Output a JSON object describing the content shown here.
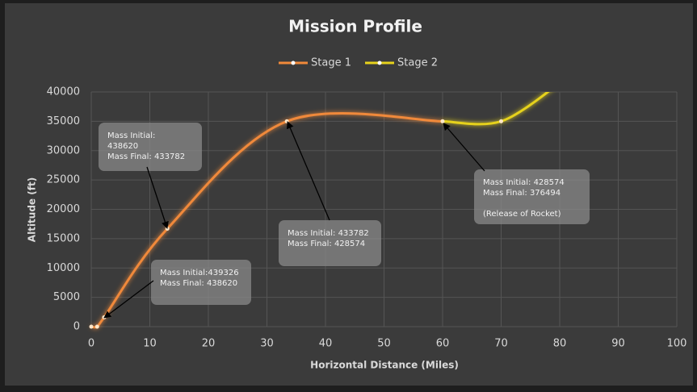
{
  "chart_data": {
    "type": "line",
    "title": "Mission Profile",
    "x_label": "Horizontal Distance (Miles)",
    "y_label": "Altitude (ft)",
    "xlim": [
      0,
      100
    ],
    "ylim": [
      0,
      40000
    ],
    "xticks": [
      0,
      10,
      20,
      30,
      40,
      50,
      60,
      70,
      80,
      90,
      100
    ],
    "yticks": [
      0,
      5000,
      10000,
      15000,
      20000,
      25000,
      30000,
      35000,
      40000
    ],
    "grid": true,
    "smooth": true,
    "legend": "top",
    "series": [
      {
        "name": "Stage 1",
        "color": "#f0893a",
        "x": [
          0,
          1,
          2.2,
          13,
          33.4,
          60
        ],
        "values": [
          0,
          0,
          1600,
          16700,
          35000,
          35000
        ]
      },
      {
        "name": "Stage 2",
        "color": "#e6d21c",
        "x": [
          60,
          70,
          80
        ],
        "values": [
          35000,
          35000,
          41500
        ]
      }
    ],
    "annotations": [
      {
        "lines": [
          "Mass Initial:",
          "438620",
          "Mass Final: 433782"
        ]
      },
      {
        "lines": [
          "Mass Initial:439326",
          "Mass Final: 438620"
        ]
      },
      {
        "lines": [
          "Mass Initial: 433782",
          "Mass Final: 428574"
        ]
      },
      {
        "lines": [
          "Mass Initial: 428574",
          "Mass Final: 376494",
          "",
          "(Release of Rocket)"
        ]
      }
    ]
  }
}
